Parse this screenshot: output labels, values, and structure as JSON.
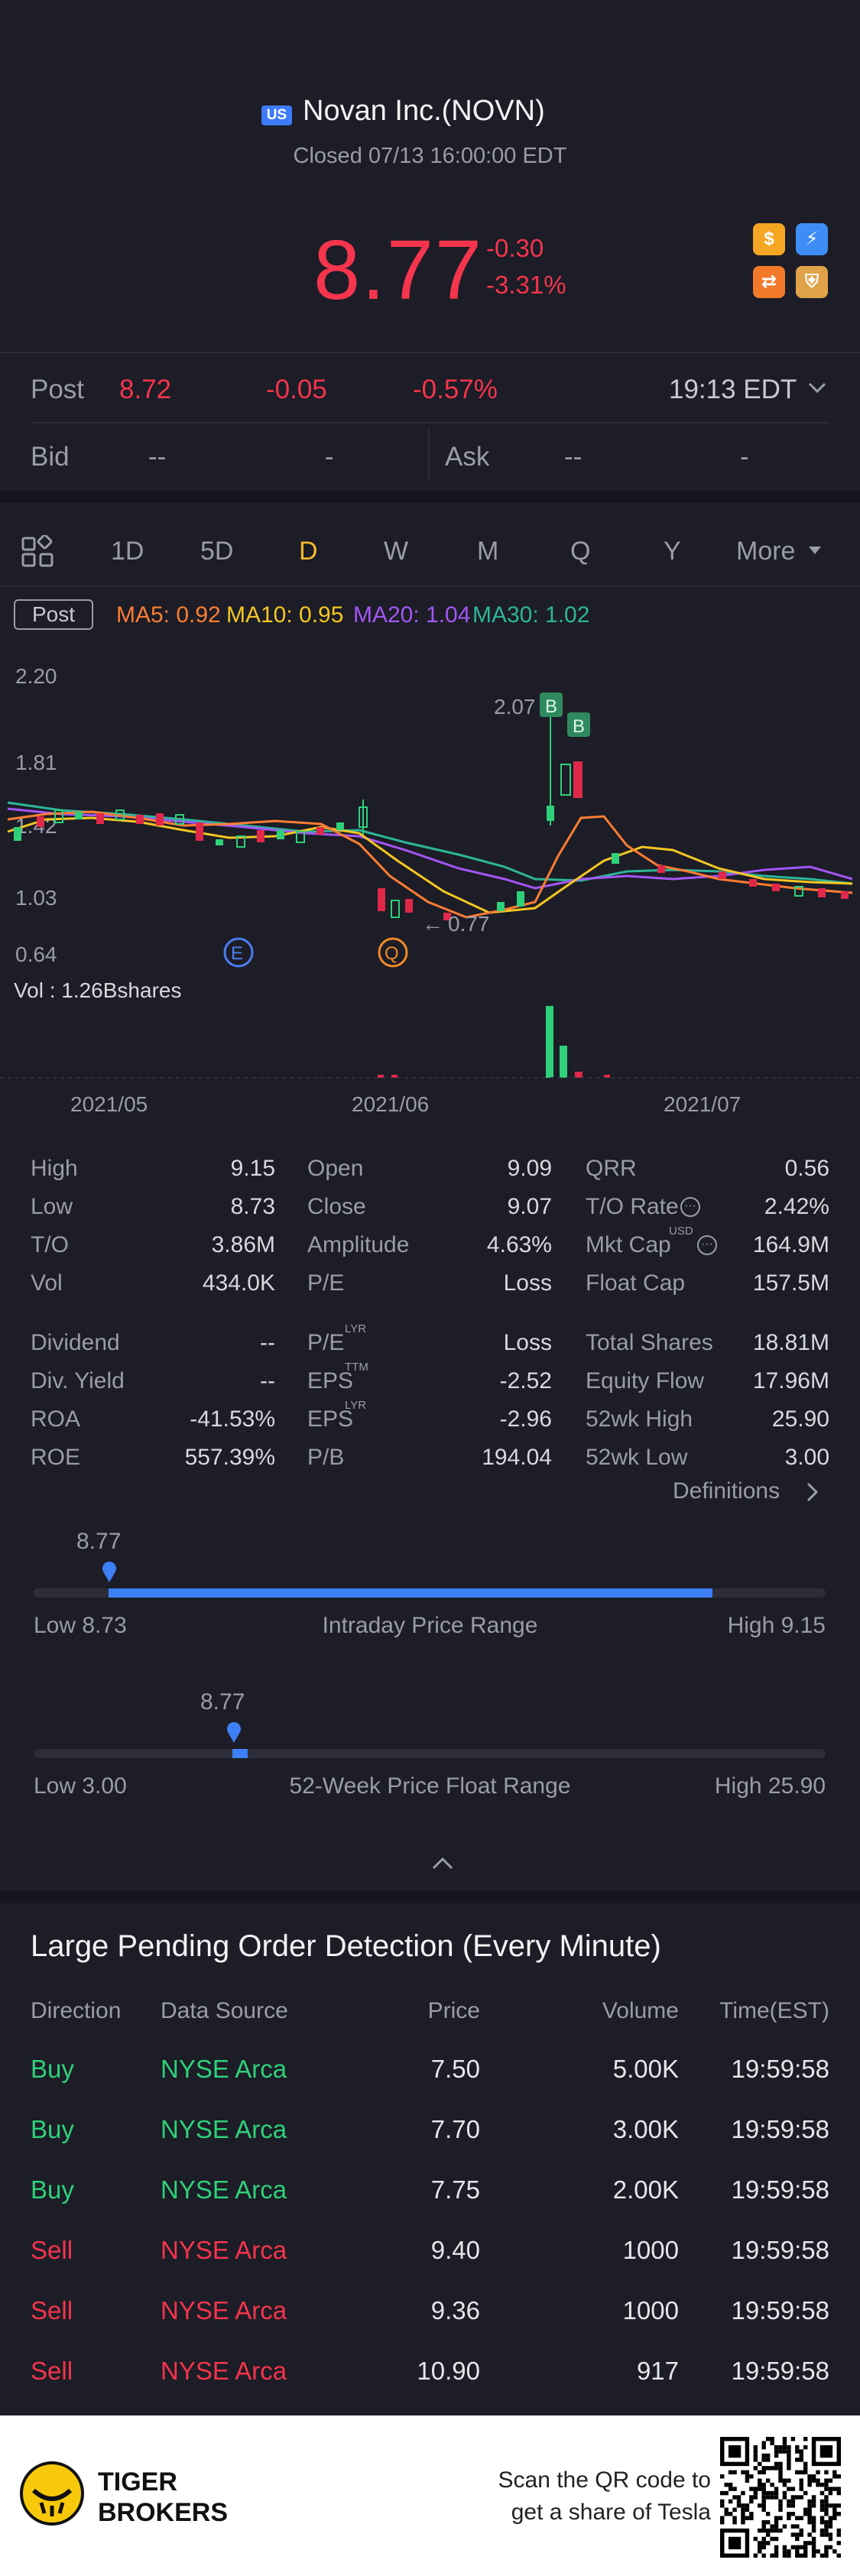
{
  "header": {
    "market_badge": "US",
    "title": "Novan Inc.(NOVN)",
    "status": "Closed 07/13 16:00:00 EDT",
    "price": "8.77",
    "change": "-0.30",
    "change_pct": "-3.31%",
    "icons": [
      "dollar-icon",
      "lightning-icon",
      "swap-icon",
      "shield-icon"
    ]
  },
  "post": {
    "label": "Post",
    "price": "8.72",
    "change": "-0.05",
    "change_pct": "-0.57%",
    "time": "19:13 EDT"
  },
  "quote": {
    "bid_label": "Bid",
    "bid_price": "--",
    "bid_size": "-",
    "ask_label": "Ask",
    "ask_price": "--",
    "ask_size": "-"
  },
  "tabs": {
    "items": [
      "1D",
      "5D",
      "D",
      "W",
      "M",
      "Q",
      "Y"
    ],
    "active": "D",
    "more": "More"
  },
  "indicators": {
    "post_label": "Post",
    "ma5": "MA5: 0.92",
    "ma10": "MA10: 0.95",
    "ma20": "MA20: 1.04",
    "ma30": "MA30: 1.02",
    "colors": {
      "ma5": "#ff7d33",
      "ma10": "#f5c623",
      "ma20": "#a356f5",
      "ma30": "#2db59a"
    }
  },
  "chart": {
    "y_labels": [
      "2.20",
      "1.81",
      "1.42",
      "1.03",
      "0.64"
    ],
    "high_label": "2.07",
    "low_label": "0.77",
    "marker_e": "E",
    "marker_q": "Q",
    "marker_b": "B",
    "vol_label": "Vol  : 1.26Bshares",
    "x_labels": [
      "2021/05",
      "2021/06",
      "2021/07"
    ]
  },
  "stats": {
    "col1": [
      {
        "label": "High",
        "value": "9.15"
      },
      {
        "label": "Low",
        "value": "8.73"
      },
      {
        "label": "T/O",
        "value": "3.86M"
      },
      {
        "label": "Vol",
        "value": "434.0K"
      },
      {
        "label": "Dividend",
        "value": "--"
      },
      {
        "label": "Div. Yield",
        "value": "--"
      },
      {
        "label": "ROA",
        "value": "-41.53%"
      },
      {
        "label": "ROE",
        "value": "557.39%"
      }
    ],
    "col2": [
      {
        "label": "Open",
        "value": "9.09"
      },
      {
        "label": "Close",
        "value": "9.07"
      },
      {
        "label": "Amplitude",
        "value": "4.63%"
      },
      {
        "label": "P/E",
        "value": "Loss"
      },
      {
        "label": "P/E",
        "sup": "LYR",
        "value": "Loss"
      },
      {
        "label": "EPS",
        "sup": "TTM",
        "value": "-2.52"
      },
      {
        "label": "EPS",
        "sup": "LYR",
        "value": "-2.96"
      },
      {
        "label": "P/B",
        "value": "194.04"
      }
    ],
    "col3": [
      {
        "label": "QRR",
        "value": "0.56"
      },
      {
        "label": "T/O Rate",
        "value": "2.42%"
      },
      {
        "label": "Mkt Cap",
        "sup": "USD",
        "value": "164.9M"
      },
      {
        "label": "Float Cap",
        "value": "157.5M"
      },
      {
        "label": "Total Shares",
        "value": "18.81M"
      },
      {
        "label": "Equity Flow",
        "value": "17.96M"
      },
      {
        "label": "52wk High",
        "value": "25.90"
      },
      {
        "label": "52wk Low",
        "value": "3.00"
      }
    ],
    "definitions": "Definitions"
  },
  "intraday_range": {
    "marker": "8.77",
    "low": "Low 8.73",
    "title": "Intraday Price Range",
    "high": "High 9.15",
    "position": 0.1
  },
  "week52_range": {
    "marker": "8.77",
    "low": "Low 3.00",
    "title": "52-Week Price Float Range",
    "high": "High 25.90",
    "position": 0.25
  },
  "orders": {
    "title": "Large Pending Order Detection (Every Minute)",
    "headers": [
      "Direction",
      "Data Source",
      "Price",
      "Volume",
      "Time(EST)"
    ],
    "rows": [
      {
        "direction": "Buy",
        "source": "NYSE Arca",
        "price": "7.50",
        "volume": "5.00K",
        "time": "19:59:58"
      },
      {
        "direction": "Buy",
        "source": "NYSE Arca",
        "price": "7.70",
        "volume": "3.00K",
        "time": "19:59:58"
      },
      {
        "direction": "Buy",
        "source": "NYSE Arca",
        "price": "7.75",
        "volume": "2.00K",
        "time": "19:59:58"
      },
      {
        "direction": "Sell",
        "source": "NYSE Arca",
        "price": "9.40",
        "volume": "1000",
        "time": "19:59:58"
      },
      {
        "direction": "Sell",
        "source": "NYSE Arca",
        "price": "9.36",
        "volume": "1000",
        "time": "19:59:58"
      },
      {
        "direction": "Sell",
        "source": "NYSE Arca",
        "price": "10.90",
        "volume": "917",
        "time": "19:59:58"
      }
    ]
  },
  "footer": {
    "brand_line1": "TIGER",
    "brand_line2": "BROKERS",
    "promo_line1": "Scan the QR code to",
    "promo_line2": "get a share of Tesla"
  }
}
